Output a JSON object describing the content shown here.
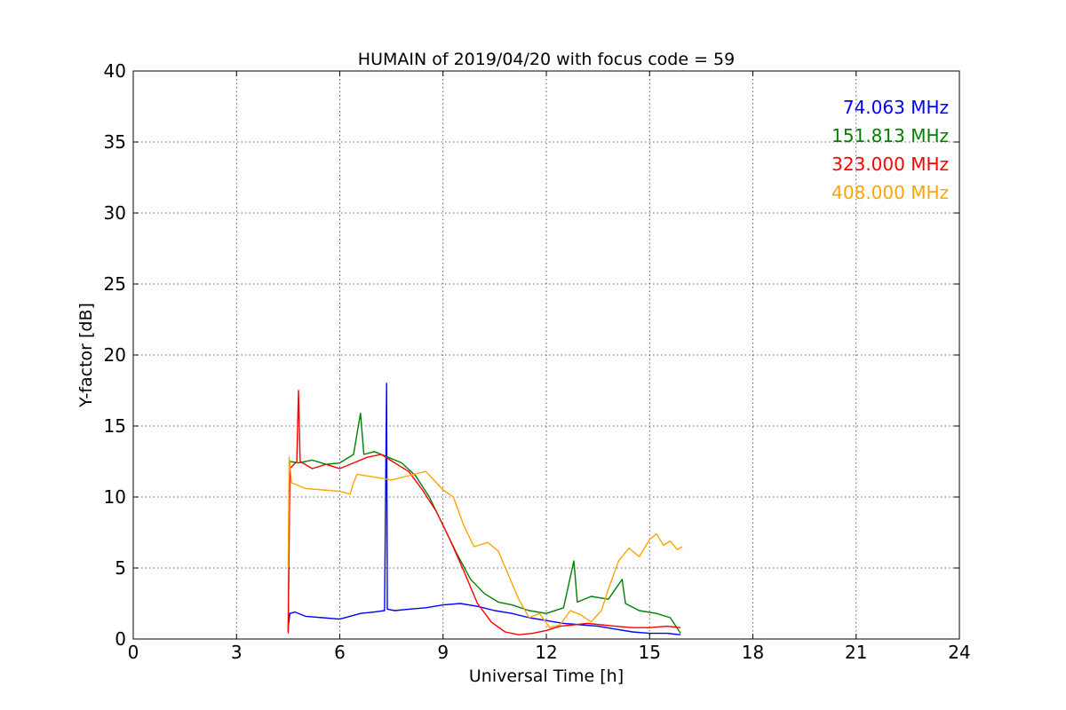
{
  "chart_data": {
    "type": "line",
    "title": "HUMAIN of 2019/04/20 with focus code = 59",
    "xlabel": "Universal Time [h]",
    "ylabel": "Y-factor [dB]",
    "xlim": [
      0,
      24
    ],
    "ylim": [
      0,
      40
    ],
    "x_ticks": [
      0,
      3,
      6,
      9,
      12,
      15,
      18,
      21,
      24
    ],
    "y_ticks": [
      0,
      5,
      10,
      15,
      20,
      25,
      30,
      35,
      40
    ],
    "x_tick_labels": [
      "0",
      "3",
      "6",
      "9",
      "12",
      "15",
      "18",
      "21",
      "24"
    ],
    "y_tick_labels": [
      "0",
      "5",
      "10",
      "15",
      "20",
      "25",
      "30",
      "35",
      "40"
    ],
    "grid": true,
    "legend_position": "top-right",
    "series": [
      {
        "name": "74.063 MHz",
        "color": "#0000ff",
        "points": [
          [
            4.5,
            0.8
          ],
          [
            4.55,
            1.8
          ],
          [
            4.7,
            1.9
          ],
          [
            5.0,
            1.6
          ],
          [
            5.5,
            1.5
          ],
          [
            6.0,
            1.4
          ],
          [
            6.3,
            1.6
          ],
          [
            6.6,
            1.8
          ],
          [
            7.0,
            1.9
          ],
          [
            7.3,
            2.0
          ],
          [
            7.36,
            18.0
          ],
          [
            7.38,
            2.1
          ],
          [
            7.6,
            2.0
          ],
          [
            8.0,
            2.1
          ],
          [
            8.5,
            2.2
          ],
          [
            9.0,
            2.4
          ],
          [
            9.5,
            2.5
          ],
          [
            10.0,
            2.3
          ],
          [
            10.5,
            2.0
          ],
          [
            11.0,
            1.8
          ],
          [
            11.5,
            1.5
          ],
          [
            12.0,
            1.3
          ],
          [
            12.5,
            1.1
          ],
          [
            13.0,
            1.0
          ],
          [
            13.5,
            0.9
          ],
          [
            14.0,
            0.7
          ],
          [
            14.5,
            0.5
          ],
          [
            15.0,
            0.4
          ],
          [
            15.5,
            0.4
          ],
          [
            15.9,
            0.3
          ]
        ]
      },
      {
        "name": "151.813 MHz",
        "color": "#008000",
        "points": [
          [
            4.5,
            0.5
          ],
          [
            4.55,
            12.5
          ],
          [
            4.8,
            12.4
          ],
          [
            5.2,
            12.6
          ],
          [
            5.6,
            12.3
          ],
          [
            6.0,
            12.4
          ],
          [
            6.4,
            13.0
          ],
          [
            6.6,
            15.9
          ],
          [
            6.7,
            13.0
          ],
          [
            7.0,
            13.2
          ],
          [
            7.4,
            12.8
          ],
          [
            7.8,
            12.4
          ],
          [
            8.2,
            11.5
          ],
          [
            8.6,
            10.0
          ],
          [
            9.0,
            8.0
          ],
          [
            9.4,
            6.0
          ],
          [
            9.8,
            4.2
          ],
          [
            10.2,
            3.2
          ],
          [
            10.6,
            2.6
          ],
          [
            11.0,
            2.4
          ],
          [
            11.5,
            2.0
          ],
          [
            12.0,
            1.8
          ],
          [
            12.5,
            2.2
          ],
          [
            12.8,
            5.5
          ],
          [
            12.9,
            2.6
          ],
          [
            13.3,
            3.0
          ],
          [
            13.8,
            2.8
          ],
          [
            14.2,
            4.2
          ],
          [
            14.3,
            2.5
          ],
          [
            14.7,
            2.0
          ],
          [
            15.2,
            1.8
          ],
          [
            15.6,
            1.5
          ],
          [
            15.9,
            0.4
          ]
        ]
      },
      {
        "name": "323.000 MHz",
        "color": "#ff0000",
        "points": [
          [
            4.5,
            0.4
          ],
          [
            4.55,
            12.0
          ],
          [
            4.75,
            12.5
          ],
          [
            4.8,
            17.5
          ],
          [
            4.85,
            12.5
          ],
          [
            5.2,
            12.0
          ],
          [
            5.6,
            12.3
          ],
          [
            6.0,
            12.0
          ],
          [
            6.4,
            12.4
          ],
          [
            6.8,
            12.8
          ],
          [
            7.2,
            13.0
          ],
          [
            7.6,
            12.4
          ],
          [
            8.0,
            11.8
          ],
          [
            8.4,
            10.5
          ],
          [
            8.8,
            9.0
          ],
          [
            9.2,
            7.0
          ],
          [
            9.6,
            4.8
          ],
          [
            10.0,
            2.5
          ],
          [
            10.4,
            1.2
          ],
          [
            10.8,
            0.5
          ],
          [
            11.2,
            0.3
          ],
          [
            11.6,
            0.4
          ],
          [
            12.0,
            0.6
          ],
          [
            12.4,
            0.9
          ],
          [
            12.8,
            1.0
          ],
          [
            13.2,
            1.1
          ],
          [
            13.6,
            1.0
          ],
          [
            14.0,
            0.9
          ],
          [
            14.5,
            0.8
          ],
          [
            15.0,
            0.8
          ],
          [
            15.5,
            0.9
          ],
          [
            15.9,
            0.8
          ]
        ]
      },
      {
        "name": "408.000 MHz",
        "color": "#ffa500",
        "points": [
          [
            4.5,
            5.0
          ],
          [
            4.53,
            12.8
          ],
          [
            4.6,
            11.0
          ],
          [
            5.0,
            10.6
          ],
          [
            5.5,
            10.5
          ],
          [
            6.0,
            10.4
          ],
          [
            6.3,
            10.2
          ],
          [
            6.4,
            11.0
          ],
          [
            6.5,
            11.6
          ],
          [
            7.0,
            11.4
          ],
          [
            7.5,
            11.2
          ],
          [
            8.0,
            11.5
          ],
          [
            8.5,
            11.8
          ],
          [
            9.0,
            10.5
          ],
          [
            9.3,
            10.0
          ],
          [
            9.6,
            8.0
          ],
          [
            9.9,
            6.5
          ],
          [
            10.3,
            6.8
          ],
          [
            10.6,
            6.2
          ],
          [
            10.9,
            4.5
          ],
          [
            11.2,
            2.8
          ],
          [
            11.5,
            1.5
          ],
          [
            11.8,
            1.8
          ],
          [
            12.1,
            0.8
          ],
          [
            12.4,
            1.0
          ],
          [
            12.7,
            2.0
          ],
          [
            13.0,
            1.7
          ],
          [
            13.3,
            1.2
          ],
          [
            13.6,
            2.0
          ],
          [
            13.8,
            3.5
          ],
          [
            14.1,
            5.5
          ],
          [
            14.4,
            6.4
          ],
          [
            14.7,
            5.8
          ],
          [
            15.0,
            7.0
          ],
          [
            15.2,
            7.4
          ],
          [
            15.4,
            6.6
          ],
          [
            15.6,
            6.9
          ],
          [
            15.8,
            6.3
          ],
          [
            15.95,
            6.5
          ]
        ]
      }
    ]
  }
}
